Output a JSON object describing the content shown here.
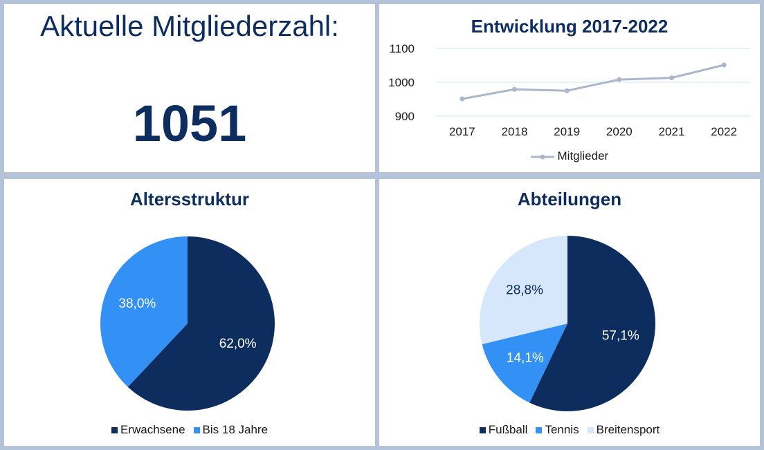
{
  "member_count": {
    "heading": "Aktuelle Mitgliederzahl:",
    "value": "1051"
  },
  "chart_data": [
    {
      "type": "line",
      "title": "Entwicklung 2017-2022",
      "x": [
        "2017",
        "2018",
        "2019",
        "2020",
        "2021",
        "2022"
      ],
      "series": [
        {
          "name": "Mitglieder",
          "values": [
            951,
            979,
            975,
            1008,
            1013,
            1051
          ],
          "color": "#aab7cb"
        }
      ],
      "ylim": [
        900,
        1100
      ],
      "yticks": [
        900,
        1000,
        1100
      ],
      "grid": true,
      "legend": "bottom"
    },
    {
      "type": "pie",
      "title": "Altersstruktur",
      "slices": [
        {
          "label": "Erwachsene",
          "value": 62.0,
          "display": "62,0%",
          "color": "#0d2d5f",
          "text_color": "#ffffff"
        },
        {
          "label": "Bis 18 Jahre",
          "value": 38.0,
          "display": "38,0%",
          "color": "#3391f5",
          "text_color": "#ffffff"
        }
      ],
      "legend": "bottom"
    },
    {
      "type": "pie",
      "title": "Abteilungen",
      "slices": [
        {
          "label": "Fußball",
          "value": 57.1,
          "display": "57,1%",
          "color": "#0d2d5f",
          "text_color": "#ffffff"
        },
        {
          "label": "Tennis",
          "value": 14.1,
          "display": "14,1%",
          "color": "#3391f5",
          "text_color": "#ffffff"
        },
        {
          "label": "Breitensport",
          "value": 28.8,
          "display": "28,8%",
          "color": "#d6e6fb",
          "text_color": "#0d2d5f"
        }
      ],
      "legend": "bottom"
    }
  ]
}
